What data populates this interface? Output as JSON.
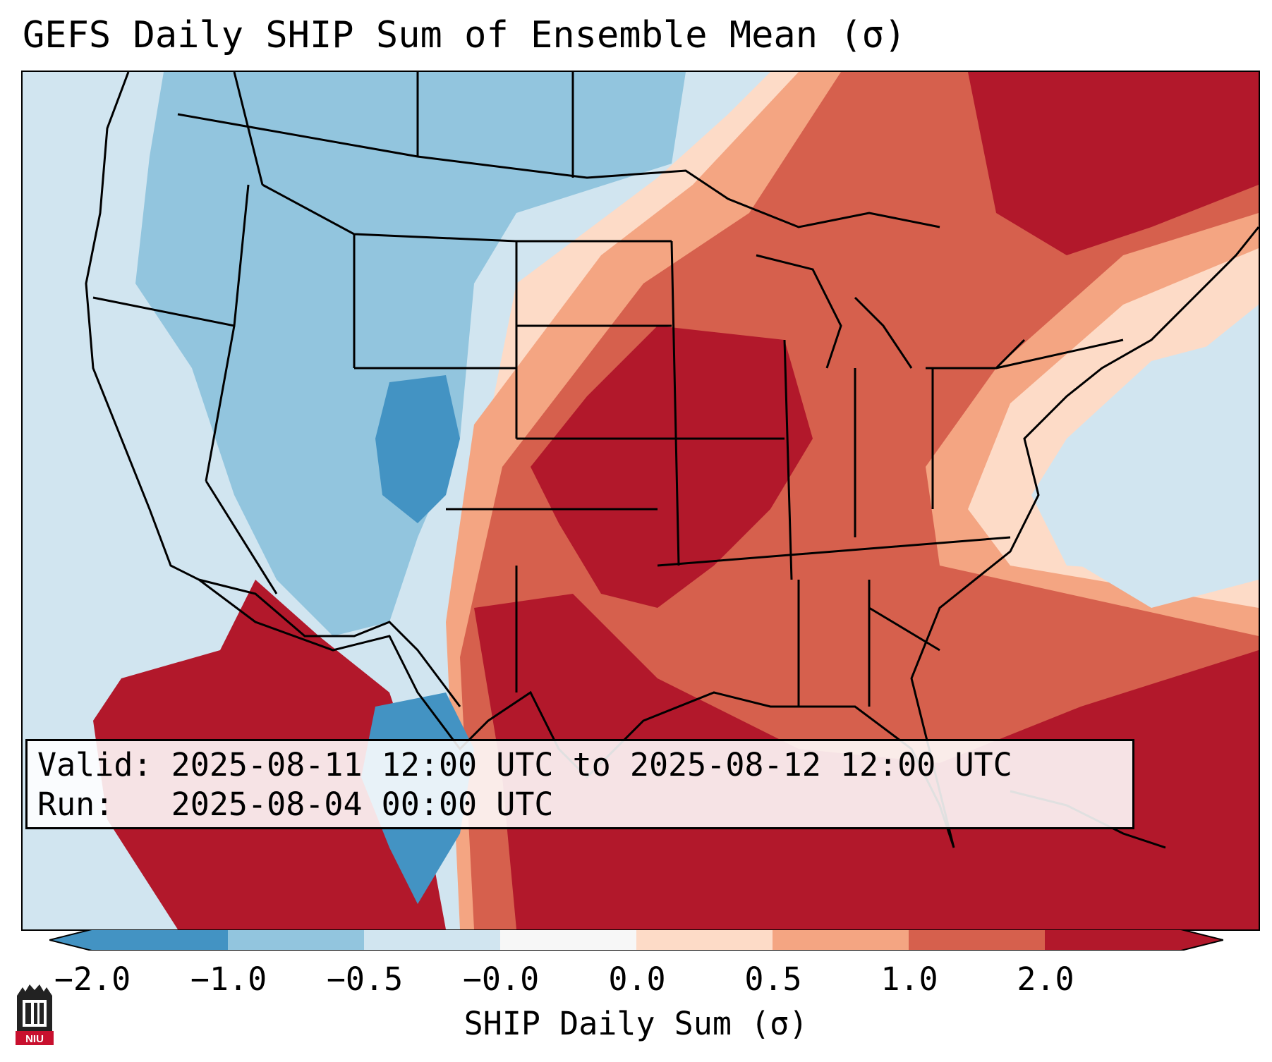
{
  "title": "GEFS Daily SHIP Sum of Ensemble Mean (σ)",
  "info": {
    "valid_label": "Valid:",
    "valid_value": "2025-08-11 12:00 UTC to 2025-08-12 12:00 UTC",
    "run_label": "Run:",
    "run_value": "2025-08-04 00:00 UTC"
  },
  "colorbar": {
    "label": "SHIP Daily Sum (σ)",
    "ticks": [
      "−2.0",
      "−1.0",
      "−0.5",
      "−0.0",
      "0.0",
      "0.5",
      "1.0",
      "2.0"
    ],
    "colors": [
      "#4393c3",
      "#92c5de",
      "#d1e5f0",
      "#f7f7f7",
      "#fddbc7",
      "#f4a582",
      "#d6604d",
      "#b2182b"
    ],
    "extend": "both"
  },
  "logo": {
    "text": "NIU"
  }
}
